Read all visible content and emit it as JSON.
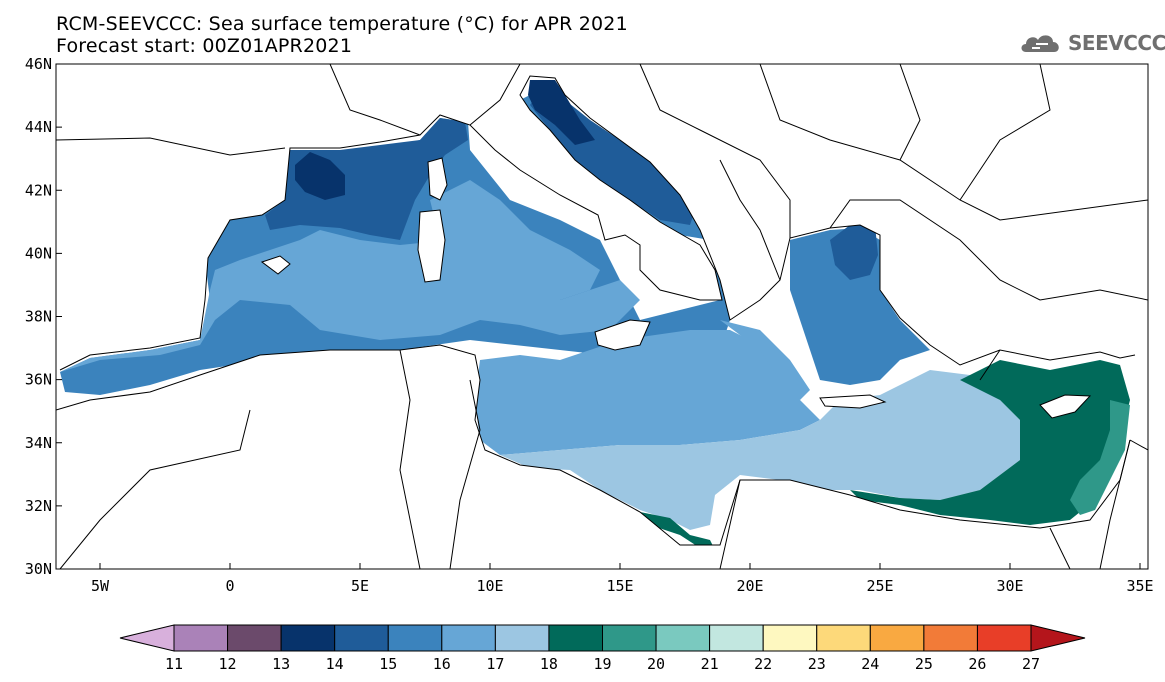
{
  "title": {
    "line1": "RCM-SEEVCCC: Sea surface temperature (°C) for APR 2021",
    "line2": "Forecast start: 00Z01APR2021"
  },
  "logo": {
    "text": "SEEVCCC",
    "icon": "cloud-logo-icon"
  },
  "map": {
    "lon_range": [
      -6,
      36
    ],
    "lat_range": [
      30,
      46
    ],
    "lon_ticks": [
      "5W",
      "0",
      "5E",
      "10E",
      "15E",
      "20E",
      "25E",
      "30E",
      "35E"
    ],
    "lat_ticks": [
      "46N",
      "44N",
      "42N",
      "40N",
      "38N",
      "36N",
      "34N",
      "32N",
      "30N"
    ],
    "colors": {
      "c14": "#07336b",
      "c15": "#1f5c99",
      "c16": "#3b83bd",
      "c17": "#66a6d6",
      "c18": "#9cc6e2",
      "c19": "#016a5a",
      "c20": "#2f9889",
      "land": "#ffffff",
      "outline": "#000000"
    }
  },
  "colorbar": {
    "labels": [
      "11",
      "12",
      "13",
      "14",
      "15",
      "16",
      "17",
      "18",
      "19",
      "20",
      "21",
      "22",
      "23",
      "24",
      "25",
      "26",
      "27"
    ],
    "colors": [
      "#d8b0dc",
      "#aa82b8",
      "#6b4a6b",
      "#07336b",
      "#1f5c99",
      "#3b83bd",
      "#66a6d6",
      "#9cc6e2",
      "#016a5a",
      "#2f9889",
      "#7ac9bf",
      "#c2e7e0",
      "#fef8c0",
      "#fdd97a",
      "#f9a941",
      "#f27b38",
      "#e83e28",
      "#b4151b"
    ]
  }
}
